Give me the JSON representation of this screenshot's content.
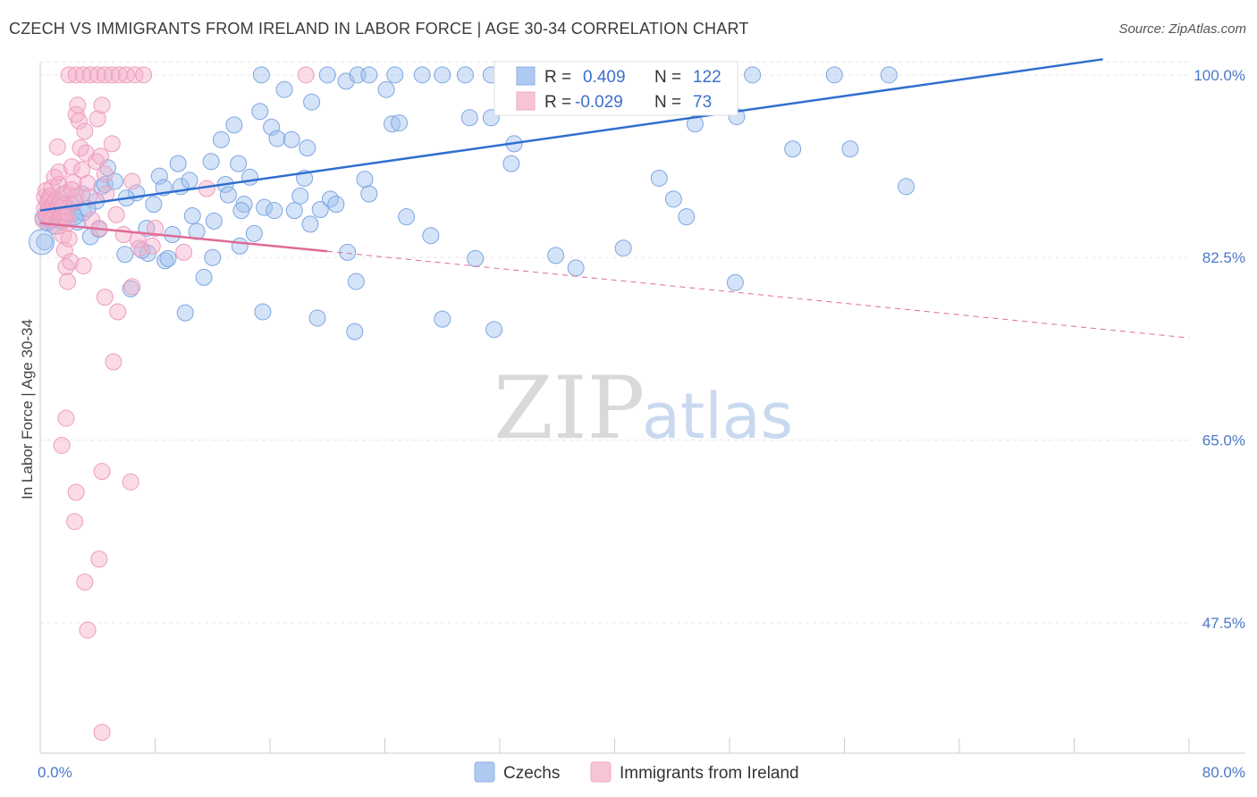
{
  "header": {
    "title": "CZECH VS IMMIGRANTS FROM IRELAND IN LABOR FORCE | AGE 30-34 CORRELATION CHART",
    "source": "Source: ZipAtlas.com"
  },
  "watermark": {
    "zip": "ZIP",
    "atlas": "atlas"
  },
  "chart_data": {
    "type": "scatter",
    "ylabel": "In Labor Force | Age 30-34",
    "xlim": [
      0,
      80
    ],
    "ylim": [
      35,
      101.5
    ],
    "x_tick_labels": [
      "0.0%",
      "80.0%"
    ],
    "y_ticks": [
      47.5,
      65.0,
      82.5,
      100.0
    ],
    "y_tick_labels": [
      "47.5%",
      "65.0%",
      "82.5%",
      "100.0%"
    ],
    "grid": true,
    "legend_position": "top-center",
    "colors": {
      "czechs": "#8ab0e8",
      "ireland": "#f2a9c4",
      "czechs_line": "#2f6fd0",
      "ireland_line": "#e06a96"
    },
    "stats": [
      {
        "series": "Czechs",
        "r_label": "R =",
        "r_value": "0.409",
        "n_label": "N =",
        "n_value": "122"
      },
      {
        "series": "Immigrants from Ireland",
        "r_label": "R =",
        "r_value": "-0.029",
        "n_label": "N =",
        "n_value": "73"
      }
    ],
    "trendlines": [
      {
        "series": "Czechs",
        "x1": 0.0,
        "y1": 87.0,
        "x2": 74.0,
        "y2": 101.5,
        "dashed": false
      },
      {
        "series": "Immigrants from Ireland",
        "x1": 0.0,
        "y1": 85.8,
        "x2": 20.0,
        "y2": 83.1,
        "dashed": false
      },
      {
        "series": "Immigrants from Ireland",
        "x1": 20.0,
        "y1": 83.1,
        "x2": 80.0,
        "y2": 74.8,
        "dashed": true
      }
    ],
    "series": [
      {
        "name": "Czechs",
        "points": [
          [
            0.3,
            84.0
          ],
          [
            0.4,
            86.5
          ],
          [
            0.8,
            87.5
          ],
          [
            0.9,
            86.2
          ],
          [
            1.2,
            87.1
          ],
          [
            1.6,
            88.6
          ],
          [
            1.8,
            86.8
          ],
          [
            2.3,
            86.7
          ],
          [
            2.9,
            88.6
          ],
          [
            3.5,
            84.5
          ],
          [
            3.9,
            87.9
          ],
          [
            4.3,
            89.3
          ],
          [
            4.5,
            89.5
          ],
          [
            4.7,
            91.1
          ],
          [
            5.9,
            82.8
          ],
          [
            6.3,
            79.5
          ],
          [
            6.7,
            88.7
          ],
          [
            7.4,
            85.3
          ],
          [
            7.5,
            82.9
          ],
          [
            7.9,
            87.6
          ],
          [
            8.3,
            90.3
          ],
          [
            8.6,
            89.2
          ],
          [
            8.7,
            82.2
          ],
          [
            8.9,
            82.4
          ],
          [
            9.6,
            91.5
          ],
          [
            9.8,
            89.3
          ],
          [
            10.1,
            77.2
          ],
          [
            10.4,
            89.9
          ],
          [
            10.9,
            85.0
          ],
          [
            11.4,
            80.6
          ],
          [
            11.9,
            91.7
          ],
          [
            12.1,
            86.0
          ],
          [
            12.6,
            93.8
          ],
          [
            12.9,
            89.5
          ],
          [
            13.1,
            88.5
          ],
          [
            13.5,
            95.2
          ],
          [
            13.8,
            91.5
          ],
          [
            14.2,
            87.6
          ],
          [
            14.6,
            90.2
          ],
          [
            14.9,
            84.8
          ],
          [
            15.3,
            96.5
          ],
          [
            15.5,
            77.3
          ],
          [
            15.6,
            87.3
          ],
          [
            16.1,
            95.0
          ],
          [
            16.3,
            87.0
          ],
          [
            16.5,
            93.9
          ],
          [
            17.0,
            98.6
          ],
          [
            17.5,
            93.8
          ],
          [
            17.7,
            87.0
          ],
          [
            18.1,
            88.4
          ],
          [
            18.4,
            90.1
          ],
          [
            18.6,
            93.0
          ],
          [
            18.8,
            85.7
          ],
          [
            18.9,
            97.4
          ],
          [
            19.3,
            76.7
          ],
          [
            19.5,
            87.1
          ],
          [
            20.2,
            88.1
          ],
          [
            20.6,
            87.6
          ],
          [
            21.3,
            99.4
          ],
          [
            21.4,
            83.0
          ],
          [
            21.9,
            75.4
          ],
          [
            22.0,
            80.2
          ],
          [
            22.6,
            90.0
          ],
          [
            22.9,
            88.6
          ],
          [
            24.1,
            98.6
          ],
          [
            24.5,
            95.3
          ],
          [
            25.0,
            95.4
          ],
          [
            25.5,
            86.4
          ],
          [
            27.2,
            84.6
          ],
          [
            28.0,
            76.6
          ],
          [
            29.9,
            95.9
          ],
          [
            30.3,
            82.4
          ],
          [
            31.4,
            95.9
          ],
          [
            31.6,
            75.6
          ],
          [
            32.8,
            91.5
          ],
          [
            33.0,
            93.4
          ],
          [
            35.9,
            82.7
          ],
          [
            37.3,
            81.5
          ],
          [
            40.6,
            83.4
          ],
          [
            43.1,
            90.1
          ],
          [
            44.1,
            88.1
          ],
          [
            45.0,
            86.4
          ],
          [
            45.6,
            95.3
          ],
          [
            48.4,
            80.1
          ],
          [
            48.5,
            96.0
          ],
          [
            52.4,
            92.9
          ],
          [
            56.4,
            92.9
          ],
          [
            60.3,
            89.3
          ],
          [
            15.4,
            100.0
          ],
          [
            20.0,
            100.0
          ],
          [
            22.1,
            100.0
          ],
          [
            22.9,
            100.0
          ],
          [
            24.7,
            100.0
          ],
          [
            26.6,
            100.0
          ],
          [
            28.0,
            100.0
          ],
          [
            29.6,
            100.0
          ],
          [
            31.4,
            100.0
          ],
          [
            33.0,
            100.0
          ],
          [
            35.0,
            100.0
          ],
          [
            36.2,
            100.0
          ],
          [
            37.8,
            100.0
          ],
          [
            40.3,
            100.0
          ],
          [
            41.6,
            100.0
          ],
          [
            44.5,
            100.0
          ],
          [
            49.6,
            100.0
          ],
          [
            55.3,
            100.0
          ],
          [
            59.1,
            100.0
          ],
          [
            1.0,
            85.5
          ],
          [
            1.4,
            86.3
          ],
          [
            1.9,
            87.3
          ],
          [
            2.6,
            85.9
          ],
          [
            3.0,
            86.8
          ],
          [
            0.7,
            86.0
          ],
          [
            1.1,
            86.9
          ],
          [
            0.5,
            85.8
          ],
          [
            2.1,
            87.6
          ],
          [
            3.3,
            87.2
          ],
          [
            0.2,
            86.3
          ],
          [
            0.6,
            87.2
          ],
          [
            1.5,
            86.0
          ],
          [
            2.4,
            86.4
          ],
          [
            4.1,
            85.2
          ],
          [
            5.2,
            89.8
          ],
          [
            6.0,
            88.2
          ],
          [
            7.1,
            83.2
          ],
          [
            9.2,
            84.7
          ],
          [
            12.0,
            82.5
          ],
          [
            13.9,
            83.6
          ],
          [
            10.6,
            86.5
          ],
          [
            14.0,
            87.0
          ]
        ]
      },
      {
        "name": "Immigrants from Ireland",
        "points": [
          [
            0.2,
            86.1
          ],
          [
            0.3,
            87.2
          ],
          [
            0.3,
            88.3
          ],
          [
            0.4,
            88.9
          ],
          [
            0.4,
            86.7
          ],
          [
            0.5,
            87.8
          ],
          [
            0.5,
            86.5
          ],
          [
            0.6,
            88.1
          ],
          [
            0.6,
            87.0
          ],
          [
            0.7,
            88.4
          ],
          [
            0.8,
            86.2
          ],
          [
            0.8,
            89.2
          ],
          [
            0.9,
            87.6
          ],
          [
            1.0,
            90.2
          ],
          [
            1.0,
            86.9
          ],
          [
            1.1,
            88.0
          ],
          [
            1.2,
            87.3
          ],
          [
            1.2,
            85.5
          ],
          [
            1.3,
            89.5
          ],
          [
            1.4,
            86.3
          ],
          [
            1.4,
            87.8
          ],
          [
            1.5,
            86.6
          ],
          [
            1.6,
            84.6
          ],
          [
            1.6,
            87.5
          ],
          [
            1.7,
            86.4
          ],
          [
            1.8,
            88.7
          ],
          [
            1.9,
            85.8
          ],
          [
            1.2,
            93.1
          ],
          [
            1.3,
            90.7
          ],
          [
            1.7,
            83.2
          ],
          [
            1.8,
            81.6
          ],
          [
            1.9,
            80.2
          ],
          [
            1.9,
            86.7
          ],
          [
            2.0,
            84.3
          ],
          [
            2.1,
            82.1
          ],
          [
            2.2,
            91.2
          ],
          [
            2.3,
            89.7
          ],
          [
            2.4,
            87.9
          ],
          [
            2.5,
            88.4
          ],
          [
            2.5,
            96.2
          ],
          [
            2.6,
            97.1
          ],
          [
            2.7,
            95.6
          ],
          [
            2.8,
            93.0
          ],
          [
            2.9,
            90.9
          ],
          [
            3.0,
            81.7
          ],
          [
            3.1,
            94.6
          ],
          [
            3.2,
            92.5
          ],
          [
            3.3,
            89.6
          ],
          [
            3.4,
            88.3
          ],
          [
            3.6,
            86.1
          ],
          [
            3.9,
            91.7
          ],
          [
            4.0,
            95.8
          ],
          [
            4.1,
            85.3
          ],
          [
            4.2,
            92.2
          ],
          [
            4.3,
            97.1
          ],
          [
            4.5,
            90.5
          ],
          [
            4.6,
            88.6
          ],
          [
            5.0,
            93.4
          ],
          [
            5.3,
            86.6
          ],
          [
            5.8,
            84.7
          ],
          [
            6.4,
            89.8
          ],
          [
            6.8,
            84.2
          ],
          [
            6.4,
            79.7
          ],
          [
            6.9,
            83.4
          ],
          [
            7.8,
            83.6
          ],
          [
            8.0,
            85.3
          ],
          [
            2.2,
            89.0
          ],
          [
            1.5,
            64.5
          ],
          [
            1.8,
            67.1
          ],
          [
            2.4,
            57.2
          ],
          [
            2.5,
            60.0
          ],
          [
            3.3,
            46.8
          ],
          [
            3.1,
            51.4
          ],
          [
            4.1,
            53.6
          ],
          [
            4.3,
            62.0
          ],
          [
            5.1,
            72.5
          ],
          [
            5.4,
            77.3
          ],
          [
            6.3,
            61.0
          ],
          [
            4.3,
            37.0
          ],
          [
            4.5,
            78.7
          ],
          [
            10.0,
            83.0
          ],
          [
            11.6,
            89.1
          ],
          [
            2.0,
            100.0
          ],
          [
            2.5,
            100.0
          ],
          [
            3.0,
            100.0
          ],
          [
            3.5,
            100.0
          ],
          [
            4.0,
            100.0
          ],
          [
            4.5,
            100.0
          ],
          [
            5.0,
            100.0
          ],
          [
            5.5,
            100.0
          ],
          [
            6.0,
            100.0
          ],
          [
            6.6,
            100.0
          ],
          [
            7.2,
            100.0
          ],
          [
            18.5,
            100.0
          ]
        ]
      }
    ]
  }
}
